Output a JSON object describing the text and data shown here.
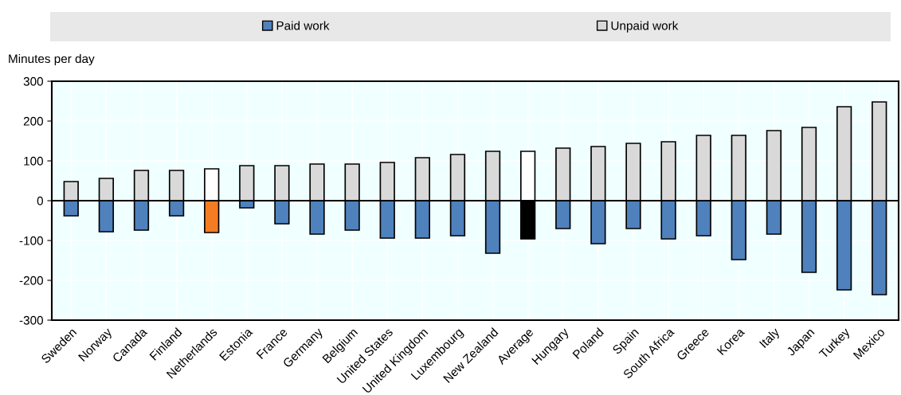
{
  "chart_data": {
    "type": "bar",
    "ylabel": "Minutes per day",
    "categories": [
      "Sweden",
      "Norway",
      "Canada",
      "Finland",
      "Netherlands",
      "Estonia",
      "France",
      "Germany",
      "Belgium",
      "United States",
      "United Kingdom",
      "Luxembourg",
      "New Zealand",
      "Average",
      "Hungary",
      "Poland",
      "Spain",
      "South Africa",
      "Greece",
      "Korea",
      "Italy",
      "Japan",
      "Turkey",
      "Mexico"
    ],
    "series": [
      {
        "name": "Paid work",
        "color": "#4f81bd",
        "colors": [
          "#4f81bd",
          "#4f81bd",
          "#4f81bd",
          "#4f81bd",
          "#f47d23",
          "#4f81bd",
          "#4f81bd",
          "#4f81bd",
          "#4f81bd",
          "#4f81bd",
          "#4f81bd",
          "#4f81bd",
          "#4f81bd",
          "#000000",
          "#4f81bd",
          "#4f81bd",
          "#4f81bd",
          "#4f81bd",
          "#4f81bd",
          "#4f81bd",
          "#4f81bd",
          "#4f81bd",
          "#4f81bd",
          "#4f81bd"
        ],
        "values": [
          -38,
          -78,
          -74,
          -38,
          -80,
          -18,
          -58,
          -84,
          -74,
          -94,
          -94,
          -88,
          -132,
          -96,
          -70,
          -108,
          -70,
          -96,
          -88,
          -148,
          -84,
          -180,
          -224,
          -236
        ]
      },
      {
        "name": "Unpaid work",
        "color": "#d9d9d9",
        "colors": [
          "#d9d9d9",
          "#d9d9d9",
          "#d9d9d9",
          "#d9d9d9",
          "#ffffff",
          "#d9d9d9",
          "#d9d9d9",
          "#d9d9d9",
          "#d9d9d9",
          "#d9d9d9",
          "#d9d9d9",
          "#d9d9d9",
          "#d9d9d9",
          "#ffffff",
          "#d9d9d9",
          "#d9d9d9",
          "#d9d9d9",
          "#d9d9d9",
          "#d9d9d9",
          "#d9d9d9",
          "#d9d9d9",
          "#d9d9d9",
          "#d9d9d9",
          "#d9d9d9"
        ],
        "values": [
          48,
          56,
          76,
          76,
          80,
          88,
          88,
          92,
          92,
          96,
          108,
          116,
          124,
          124,
          132,
          136,
          144,
          148,
          164,
          164,
          176,
          184,
          236,
          248
        ]
      }
    ],
    "ylim": [
      -300,
      300
    ],
    "yticks": [
      -300,
      -200,
      -100,
      0,
      100,
      200,
      300
    ],
    "grid": true,
    "legend": "top",
    "stacked": true
  }
}
